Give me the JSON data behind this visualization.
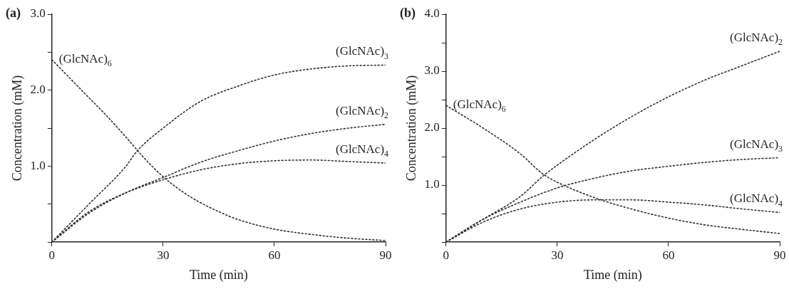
{
  "chart_data": [
    {
      "type": "line",
      "title": "(a)",
      "xlabel": "Time (min)",
      "ylabel": "Concentration (mM)",
      "xlim": [
        0,
        90
      ],
      "xticks": [
        0,
        30,
        60,
        90
      ],
      "ylim": [
        0,
        3
      ],
      "yticks": [
        {
          "value": 0,
          "label": null
        },
        {
          "value": 0.5,
          "label": null
        },
        {
          "value": 1,
          "label": "1.0"
        },
        {
          "value": 1.5,
          "label": null
        },
        {
          "value": 2,
          "label": "2.0"
        },
        {
          "value": 2.5,
          "label": null
        },
        {
          "value": 3,
          "label": "3.0"
        }
      ],
      "grid": false,
      "legend": false,
      "marker": "none",
      "line_style": "dotted",
      "series": [
        {
          "name": "(GlcNAc)$_{6}$",
          "color": "#333333",
          "x": [
            0,
            5,
            10,
            15,
            20,
            25,
            30,
            35,
            40,
            45,
            50,
            60,
            70,
            80,
            90
          ],
          "values": [
            2.4,
            2.15,
            1.9,
            1.65,
            1.38,
            1.1,
            0.86,
            0.67,
            0.52,
            0.4,
            0.3,
            0.17,
            0.1,
            0.05,
            0.02
          ]
        },
        {
          "name": "(GlcNAc)$_{3}$",
          "color": "#333333",
          "x": [
            0,
            10,
            20,
            23,
            30,
            40,
            50,
            60,
            70,
            80,
            90
          ],
          "values": [
            0,
            0.5,
            1.0,
            1.2,
            1.5,
            1.85,
            2.05,
            2.2,
            2.28,
            2.32,
            2.33
          ]
        },
        {
          "name": "(GlcNAc)$_{2}$",
          "color": "#333333",
          "x": [
            0,
            10,
            20,
            30,
            40,
            50,
            60,
            70,
            80,
            90
          ],
          "values": [
            0,
            0.38,
            0.65,
            0.85,
            1.05,
            1.2,
            1.33,
            1.43,
            1.5,
            1.55
          ]
        },
        {
          "name": "(GlcNAc)$_{4}$",
          "color": "#333333",
          "x": [
            0,
            10,
            20,
            30,
            40,
            50,
            60,
            70,
            80,
            90
          ],
          "values": [
            0,
            0.4,
            0.65,
            0.82,
            0.95,
            1.03,
            1.07,
            1.08,
            1.06,
            1.04
          ]
        }
      ]
    },
    {
      "type": "line",
      "title": "(b)",
      "xlabel": "Time (min)",
      "ylabel": "Concentration (mM)",
      "xlim": [
        0,
        90
      ],
      "xticks": [
        0,
        30,
        60,
        90
      ],
      "ylim": [
        0,
        4
      ],
      "yticks": [
        {
          "value": 0,
          "label": null
        },
        {
          "value": 0.5,
          "label": null
        },
        {
          "value": 1,
          "label": "1.0"
        },
        {
          "value": 1.5,
          "label": null
        },
        {
          "value": 2,
          "label": "2.0"
        },
        {
          "value": 2.5,
          "label": null
        },
        {
          "value": 3,
          "label": "3.0"
        },
        {
          "value": 3.5,
          "label": null
        },
        {
          "value": 4,
          "label": "4.0"
        }
      ],
      "grid": false,
      "legend": false,
      "marker": "none",
      "line_style": "dotted",
      "series": [
        {
          "name": "(GlcNAc)$_{2}$",
          "color": "#333333",
          "x": [
            0,
            10,
            20,
            26,
            30,
            40,
            50,
            60,
            70,
            80,
            90
          ],
          "values": [
            0,
            0.4,
            0.8,
            1.15,
            1.35,
            1.8,
            2.2,
            2.55,
            2.85,
            3.1,
            3.35
          ]
        },
        {
          "name": "(GlcNAc)$_{6}$",
          "color": "#333333",
          "x": [
            0,
            10,
            20,
            26,
            30,
            40,
            50,
            60,
            70,
            80,
            90
          ],
          "values": [
            2.4,
            2.0,
            1.55,
            1.2,
            1.05,
            0.78,
            0.58,
            0.42,
            0.3,
            0.22,
            0.15
          ]
        },
        {
          "name": "(GlcNAc)$_{3}$",
          "color": "#333333",
          "x": [
            0,
            10,
            20,
            30,
            40,
            50,
            60,
            70,
            80,
            90
          ],
          "values": [
            0,
            0.4,
            0.7,
            0.95,
            1.12,
            1.25,
            1.33,
            1.4,
            1.45,
            1.48
          ]
        },
        {
          "name": "(GlcNAc)$_{4}$",
          "color": "#333333",
          "x": [
            0,
            10,
            20,
            30,
            40,
            50,
            60,
            70,
            80,
            90
          ],
          "values": [
            0,
            0.35,
            0.58,
            0.7,
            0.74,
            0.74,
            0.7,
            0.65,
            0.58,
            0.52
          ]
        }
      ]
    }
  ]
}
